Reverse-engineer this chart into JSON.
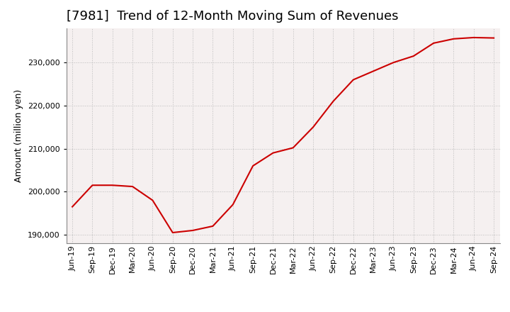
{
  "title": "[7981]  Trend of 12-Month Moving Sum of Revenues",
  "ylabel": "Amount (million yen)",
  "line_color": "#cc0000",
  "background_color": "#ffffff",
  "plot_bg_color": "#f5f0f0",
  "grid_color": "#bbbbbb",
  "x_labels": [
    "Jun-19",
    "Sep-19",
    "Dec-19",
    "Mar-20",
    "Jun-20",
    "Sep-20",
    "Dec-20",
    "Mar-21",
    "Jun-21",
    "Sep-21",
    "Dec-21",
    "Mar-22",
    "Jun-22",
    "Sep-22",
    "Dec-22",
    "Mar-23",
    "Jun-23",
    "Sep-23",
    "Dec-23",
    "Mar-24",
    "Jun-24",
    "Sep-24"
  ],
  "values": [
    196500,
    201500,
    201500,
    201200,
    198000,
    190500,
    191000,
    192000,
    197000,
    206000,
    209000,
    210200,
    215000,
    221000,
    226000,
    228000,
    230000,
    231500,
    234500,
    235500,
    235800,
    235700
  ],
  "ylim": [
    188000,
    238000
  ],
  "yticks": [
    190000,
    200000,
    210000,
    220000,
    230000
  ],
  "title_fontsize": 13,
  "label_fontsize": 9,
  "tick_fontsize": 8
}
